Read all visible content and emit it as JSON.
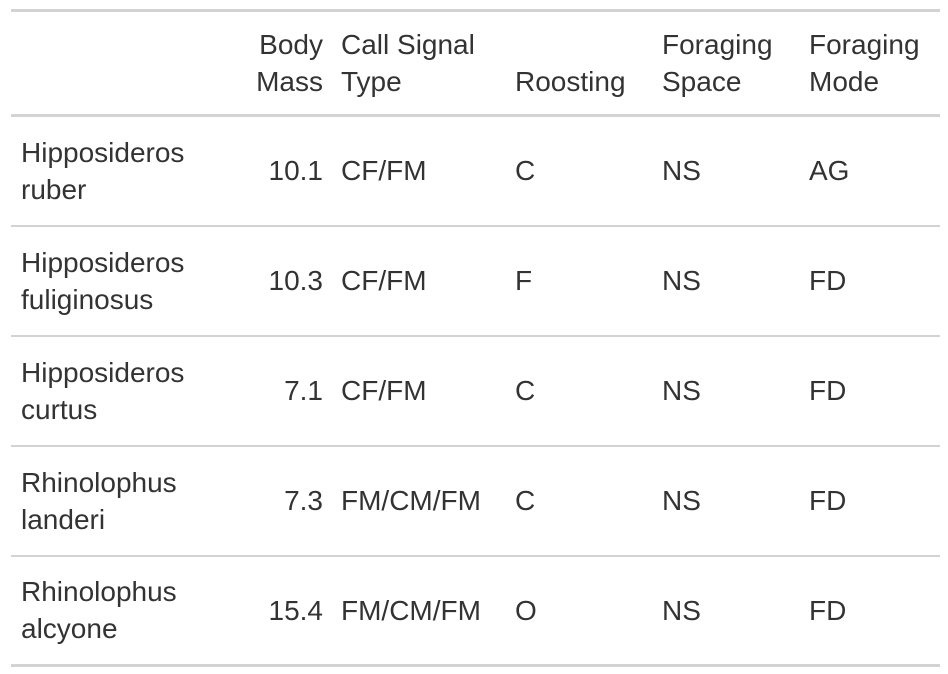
{
  "table": {
    "headers": {
      "species": "",
      "body_mass": [
        "Body",
        "Mass"
      ],
      "call_signal_type": [
        "Call Signal",
        "Type"
      ],
      "roosting": "Roosting",
      "foraging_space": [
        "Foraging",
        "Space"
      ],
      "foraging_mode": [
        "Foraging",
        "Mode"
      ]
    },
    "rows": [
      {
        "species": [
          "Hipposideros",
          "ruber"
        ],
        "body_mass": "10.1",
        "call": "CF/FM",
        "roosting": "C",
        "space": "NS",
        "mode": "AG"
      },
      {
        "species": [
          "Hipposideros",
          "fuliginosus"
        ],
        "body_mass": "10.3",
        "call": "CF/FM",
        "roosting": "F",
        "space": "NS",
        "mode": "FD"
      },
      {
        "species": [
          "Hipposideros",
          "curtus"
        ],
        "body_mass": "7.1",
        "call": "CF/FM",
        "roosting": "C",
        "space": "NS",
        "mode": "FD"
      },
      {
        "species": [
          "Rhinolophus",
          "landeri"
        ],
        "body_mass": "7.3",
        "call": "FM/CM/FM",
        "roosting": "C",
        "space": "NS",
        "mode": "FD"
      },
      {
        "species": [
          "Rhinolophus",
          "alcyone"
        ],
        "body_mass": "15.4",
        "call": "FM/CM/FM",
        "roosting": "O",
        "space": "NS",
        "mode": "FD"
      }
    ]
  }
}
